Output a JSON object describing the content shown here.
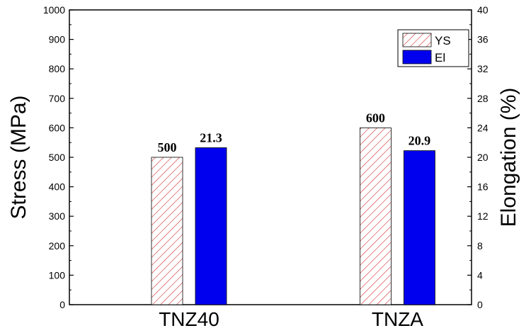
{
  "chart_data": {
    "type": "bar",
    "categories": [
      "TNZ40",
      "TNZA"
    ],
    "series": [
      {
        "name": "YS",
        "axis": "left",
        "values": [
          500,
          600
        ],
        "labels": [
          "500",
          "600"
        ],
        "pattern": "hatch",
        "color": "#cc2222"
      },
      {
        "name": "El",
        "axis": "right",
        "values": [
          21.3,
          20.9
        ],
        "labels": [
          "21.3",
          "20.9"
        ],
        "pattern": "solid",
        "color": "#0000ee"
      }
    ],
    "ylabel": "Stress (MPa)",
    "y2label": "Elongation (%)",
    "ylim": [
      0,
      1000
    ],
    "y2lim": [
      0,
      40
    ],
    "yticks": [
      "0",
      "100",
      "200",
      "300",
      "400",
      "500",
      "600",
      "700",
      "800",
      "900",
      "1000"
    ],
    "y2ticks": [
      "0",
      "4",
      "8",
      "12",
      "16",
      "20",
      "24",
      "28",
      "32",
      "36",
      "40"
    ],
    "legend": "top-right",
    "grid": false
  }
}
